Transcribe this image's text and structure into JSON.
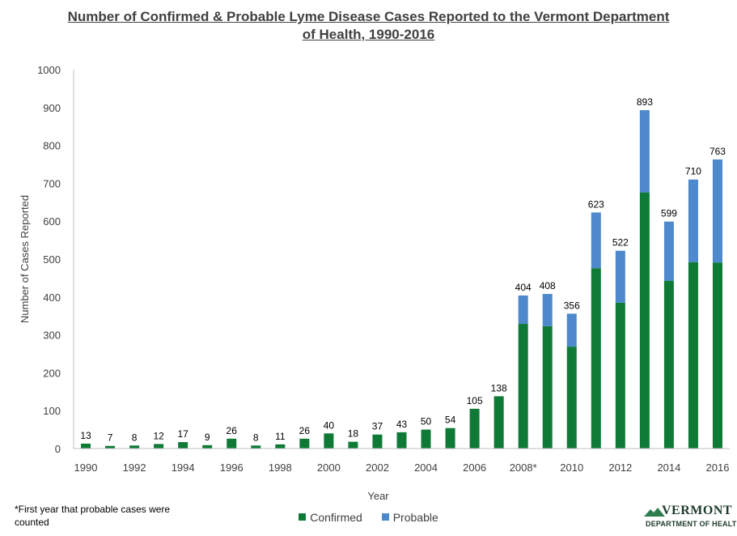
{
  "chart_data": {
    "type": "bar",
    "stacked": true,
    "title_line1": "Number of Confirmed & Probable Lyme Disease Cases Reported to the Vermont Department",
    "title_line2": "of Health, 1990-2016",
    "xlabel": "Year",
    "ylabel": "Number  of Cases Reported",
    "ylim": [
      0,
      1000
    ],
    "yticks": [
      "0",
      "100",
      "200",
      "300",
      "400",
      "500",
      "600",
      "700",
      "800",
      "900",
      "1000"
    ],
    "categories": [
      "1990",
      "1991",
      "1992",
      "1993",
      "1994",
      "1995",
      "1996",
      "1997",
      "1998",
      "1999",
      "2000",
      "2001",
      "2002",
      "2003",
      "2004",
      "2005",
      "2006",
      "2007",
      "2008",
      "2009",
      "2010",
      "2011",
      "2012",
      "2013",
      "2014",
      "2015",
      "2016"
    ],
    "xtick_labels": [
      "1990",
      "",
      "1992",
      "",
      "1994",
      "",
      "1996",
      "",
      "1998",
      "",
      "2000",
      "",
      "2002",
      "",
      "2004",
      "",
      "2006",
      "",
      "2008*",
      "",
      "2010",
      "",
      "2012",
      "",
      "2014",
      "",
      "2016"
    ],
    "series": [
      {
        "name": "Confirmed",
        "color": "#0e7a36",
        "values": [
          13,
          7,
          8,
          12,
          17,
          9,
          26,
          8,
          11,
          26,
          40,
          18,
          37,
          43,
          50,
          54,
          105,
          138,
          329,
          323,
          269,
          476,
          385,
          676,
          443,
          492,
          491
        ]
      },
      {
        "name": "Probable",
        "color": "#4d89cc",
        "values": [
          0,
          0,
          0,
          0,
          0,
          0,
          0,
          0,
          0,
          0,
          0,
          0,
          0,
          0,
          0,
          0,
          0,
          0,
          75,
          85,
          87,
          147,
          137,
          217,
          156,
          218,
          272
        ]
      }
    ],
    "totals": [
      "13",
      "7",
      "8",
      "12",
      "17",
      "9",
      "26",
      "8",
      "11",
      "26",
      "40",
      "18",
      "37",
      "43",
      "50",
      "54",
      "105",
      "138",
      "404",
      "408",
      "356",
      "623",
      "522",
      "893",
      "599",
      "710",
      "763"
    ],
    "grid": false,
    "legend": "bottom-center"
  },
  "footnote": "*First year that probable cases were counted",
  "logo": {
    "word": "VERMONT",
    "subtitle": "DEPARTMENT OF HEALTH"
  }
}
